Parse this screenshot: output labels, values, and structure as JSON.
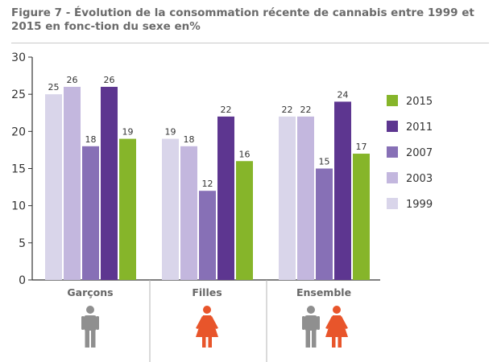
{
  "title": "Figure 7 - Évolution de la consommation récente de cannabis entre 1999 et 2015 en fonc-tion du sexe en%",
  "chart_data": {
    "type": "bar",
    "title": "Figure 7 - Évolution de la consommation récente de cannabis entre 1999 et 2015 en fonc-tion du sexe en%",
    "categories": [
      "Garçons",
      "Filles",
      "Ensemble"
    ],
    "series": [
      {
        "name": "1999",
        "color": "#d9d5ea",
        "values": [
          25,
          19,
          22
        ]
      },
      {
        "name": "2003",
        "color": "#c3b7de",
        "values": [
          26,
          18,
          22
        ]
      },
      {
        "name": "2007",
        "color": "#8770b6",
        "values": [
          18,
          12,
          15
        ]
      },
      {
        "name": "2011",
        "color": "#5d3690",
        "values": [
          26,
          22,
          24
        ]
      },
      {
        "name": "2015",
        "color": "#86b52a",
        "values": [
          19,
          16,
          17
        ]
      }
    ],
    "ylim": [
      0,
      30
    ],
    "yticks": [
      0,
      5,
      10,
      15,
      20,
      25,
      30
    ],
    "xlabel": "",
    "ylabel": "",
    "legend_position": "right",
    "legend_order": [
      "2015",
      "2011",
      "2007",
      "2003",
      "1999"
    ],
    "icons": [
      [
        "male-figure-icon"
      ],
      [
        "female-figure-icon"
      ],
      [
        "male-figure-icon",
        "female-figure-icon"
      ]
    ],
    "icon_colors": {
      "male-figure-icon": "#8f8f8f",
      "female-figure-icon": "#e8552b"
    }
  }
}
